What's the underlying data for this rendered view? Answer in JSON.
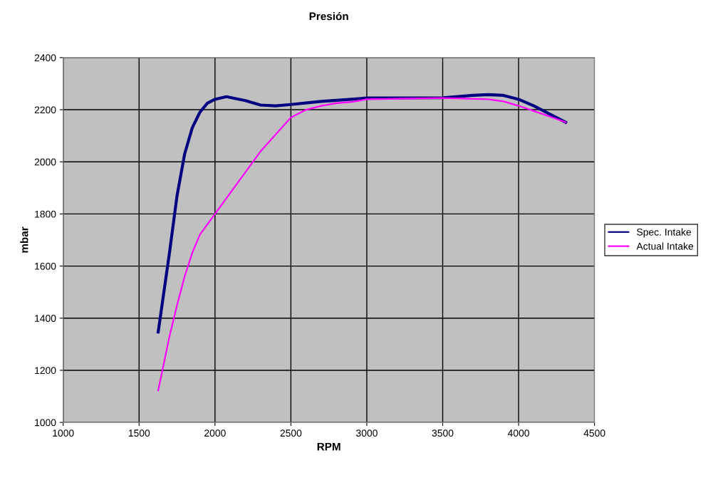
{
  "chart_data": {
    "type": "line",
    "title": "Presión",
    "xlabel": "RPM",
    "ylabel": "mbar",
    "xlim": [
      1000,
      4500
    ],
    "xticks": [
      1000,
      1500,
      2000,
      2500,
      3000,
      3500,
      4000,
      4500
    ],
    "ylim": [
      1000,
      2400
    ],
    "yticks": [
      1000,
      1200,
      1400,
      1600,
      1800,
      2000,
      2200,
      2400
    ],
    "grid": true,
    "legend": "right",
    "marker": "none",
    "line_style": "solid",
    "series": [
      {
        "name": "Spec. Intake",
        "color": "#000080",
        "x": [
          1626,
          1700,
          1750,
          1800,
          1850,
          1900,
          1950,
          2000,
          2075,
          2200,
          2300,
          2400,
          2500,
          2700,
          2900,
          3000,
          3500,
          3700,
          3800,
          3900,
          4000,
          4100,
          4200,
          4310
        ],
        "values": [
          1347,
          1650,
          1870,
          2030,
          2130,
          2190,
          2225,
          2240,
          2250,
          2235,
          2218,
          2215,
          2220,
          2232,
          2240,
          2245,
          2246,
          2255,
          2258,
          2255,
          2240,
          2215,
          2185,
          2152
        ]
      },
      {
        "name": "Actual Intake",
        "color": "#ff00ff",
        "x": [
          1626,
          1700,
          1750,
          1800,
          1850,
          1900,
          2000,
          2100,
          2200,
          2300,
          2400,
          2500,
          2600,
          2700,
          2800,
          2900,
          3000,
          3500,
          3800,
          3900,
          4000,
          4100,
          4200,
          4310
        ],
        "values": [
          1123,
          1330,
          1450,
          1560,
          1650,
          1720,
          1800,
          1880,
          1960,
          2040,
          2105,
          2170,
          2200,
          2215,
          2225,
          2230,
          2240,
          2245,
          2240,
          2232,
          2215,
          2195,
          2175,
          2152
        ]
      }
    ]
  }
}
